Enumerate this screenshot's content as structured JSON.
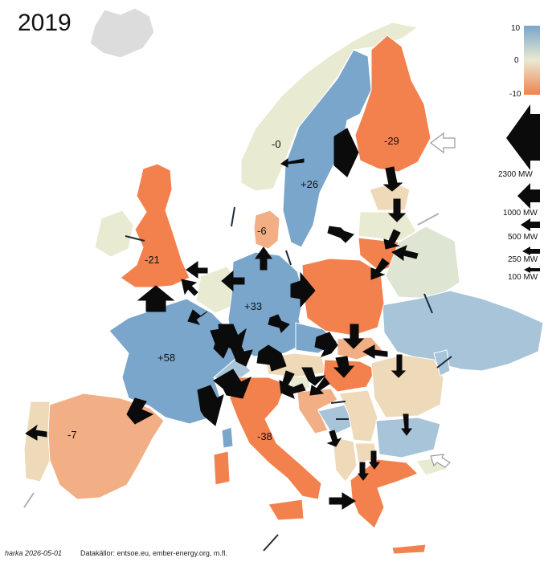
{
  "year": "2019",
  "credits": {
    "author": "harka 2026-05-01",
    "sources": "Datakällor: entsoe.eu, ember-energy.org, m.fl."
  },
  "colors": {
    "sea": "#ffffff",
    "blue": "#7aa6cc",
    "lightblue": "#a8c4d9",
    "pale": "#e9ead2",
    "palegreen": "#dfe5d3",
    "beige": "#eed9b8",
    "peach": "#f2ae84",
    "orange": "#f2814d",
    "gray": "#dcdcdc",
    "arrow": "#0b0b0b"
  },
  "color_scale": {
    "max_label": "10",
    "mid_label": "0",
    "min_label": "-10"
  },
  "arrow_legend": [
    {
      "label": "2300 MW",
      "mw": 2300
    },
    {
      "label": "1000 MW",
      "mw": 1000
    },
    {
      "label": "500 MW",
      "mw": 500
    },
    {
      "label": "250 MW",
      "mw": 250
    },
    {
      "label": "100 MW",
      "mw": 100
    }
  ],
  "country_labels": [
    {
      "name": "norway",
      "text": "-0"
    },
    {
      "name": "sweden",
      "text": "+26"
    },
    {
      "name": "finland",
      "text": "-29"
    },
    {
      "name": "denmark",
      "text": "-6"
    },
    {
      "name": "uk",
      "text": "-21"
    },
    {
      "name": "germany",
      "text": "+33"
    },
    {
      "name": "france",
      "text": "+58"
    },
    {
      "name": "spain",
      "text": "-7"
    },
    {
      "name": "italy",
      "text": "-38"
    }
  ]
}
